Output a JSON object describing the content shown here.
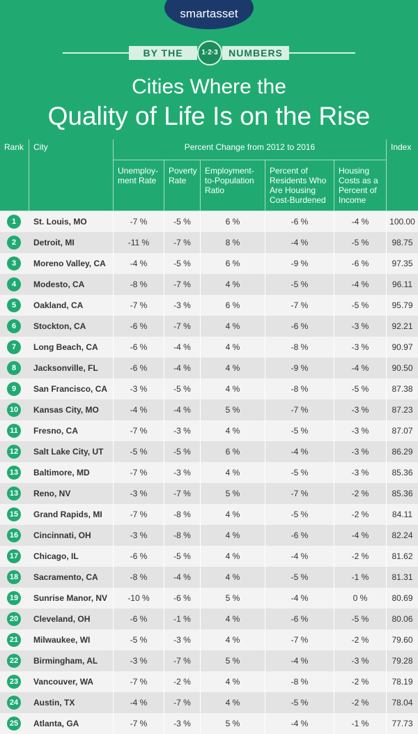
{
  "logo": "smartasset",
  "banner": {
    "left": "BY THE",
    "badge": "1·2·3",
    "right": "NUMBERS"
  },
  "title": {
    "line1": "Cities Where the",
    "line2": "Quality of Life Is on the Rise"
  },
  "table": {
    "headers": {
      "rank": "Rank",
      "city": "City",
      "group": "Percent Change from 2012 to 2016",
      "index": "Index",
      "sub": [
        [
          "Unemploy-",
          "ment Rate"
        ],
        [
          "Poverty",
          "Rate"
        ],
        [
          "Employment-",
          "to-Population",
          "Ratio"
        ],
        [
          "Percent of",
          "Residents Who",
          "Are Housing",
          "Cost-Burdened"
        ],
        [
          "Housing",
          "Costs as a",
          "Percent of",
          "Income"
        ]
      ]
    },
    "rows": [
      [
        "1",
        "St. Louis, MO",
        "-7 %",
        "-5 %",
        "6 %",
        "-6 %",
        "-4 %",
        "100.00"
      ],
      [
        "2",
        "Detroit, MI",
        "-11 %",
        "-7 %",
        "8 %",
        "-4 %",
        "-5 %",
        "98.75"
      ],
      [
        "3",
        "Moreno Valley, CA",
        "-4 %",
        "-5 %",
        "6 %",
        "-9 %",
        "-6 %",
        "97.35"
      ],
      [
        "4",
        "Modesto, CA",
        "-8 %",
        "-7 %",
        "4 %",
        "-5 %",
        "-4 %",
        "96.11"
      ],
      [
        "5",
        "Oakland, CA",
        "-7 %",
        "-3 %",
        "6 %",
        "-7 %",
        "-5 %",
        "95.79"
      ],
      [
        "6",
        "Stockton, CA",
        "-6 %",
        "-7 %",
        "4 %",
        "-6 %",
        "-3 %",
        "92.21"
      ],
      [
        "7",
        "Long Beach, CA",
        "-6 %",
        "-4 %",
        "4 %",
        "-8 %",
        "-3 %",
        "90.97"
      ],
      [
        "8",
        "Jacksonville, FL",
        "-6 %",
        "-4 %",
        "4 %",
        "-9 %",
        "-4 %",
        "90.50"
      ],
      [
        "9",
        "San Francisco, CA",
        "-3 %",
        "-5 %",
        "4 %",
        "-8 %",
        "-5 %",
        "87.38"
      ],
      [
        "10",
        "Kansas City, MO",
        "-4 %",
        "-4 %",
        "5 %",
        "-7 %",
        "-3 %",
        "87.23"
      ],
      [
        "11",
        "Fresno, CA",
        "-7 %",
        "-3 %",
        "4 %",
        "-5 %",
        "-3 %",
        "87.07"
      ],
      [
        "12",
        "Salt Lake City, UT",
        "-5 %",
        "-5 %",
        "6 %",
        "-4 %",
        "-3 %",
        "86.29"
      ],
      [
        "13",
        "Baltimore, MD",
        "-7 %",
        "-3 %",
        "4 %",
        "-5 %",
        "-3 %",
        "85.36"
      ],
      [
        "13",
        "Reno, NV",
        "-3 %",
        "-7 %",
        "5 %",
        "-7 %",
        "-2 %",
        "85.36"
      ],
      [
        "15",
        "Grand Rapids, MI",
        "-7 %",
        "-8 %",
        "4 %",
        "-5 %",
        "-2 %",
        "84.11"
      ],
      [
        "16",
        "Cincinnati, OH",
        "-3 %",
        "-8 %",
        "4 %",
        "-6 %",
        "-4 %",
        "82.24"
      ],
      [
        "17",
        "Chicago, IL",
        "-6 %",
        "-5 %",
        "4 %",
        "-4 %",
        "-2 %",
        "81.62"
      ],
      [
        "18",
        "Sacramento, CA",
        "-8 %",
        "-4 %",
        "4 %",
        "-5 %",
        "-1 %",
        "81.31"
      ],
      [
        "19",
        "Sunrise Manor, NV",
        "-10 %",
        "-6 %",
        "5 %",
        "-4 %",
        "0 %",
        "80.69"
      ],
      [
        "20",
        "Cleveland, OH",
        "-6 %",
        "-1 %",
        "4 %",
        "-6 %",
        "-5 %",
        "80.06"
      ],
      [
        "21",
        "Milwaukee, WI",
        "-5 %",
        "-3 %",
        "4 %",
        "-7 %",
        "-2 %",
        "79.60"
      ],
      [
        "22",
        "Birmingham, AL",
        "-3 %",
        "-7 %",
        "5 %",
        "-4 %",
        "-3 %",
        "79.28"
      ],
      [
        "23",
        "Vancouver, WA",
        "-7 %",
        "-2 %",
        "4 %",
        "-8 %",
        "-2 %",
        "78.19"
      ],
      [
        "24",
        "Austin, TX",
        "-4 %",
        "-7 %",
        "4 %",
        "-5 %",
        "-2 %",
        "78.04"
      ],
      [
        "25",
        "Atlanta, GA",
        "-7 %",
        "-3 %",
        "5 %",
        "-4 %",
        "-1 %",
        "77.73"
      ]
    ]
  }
}
